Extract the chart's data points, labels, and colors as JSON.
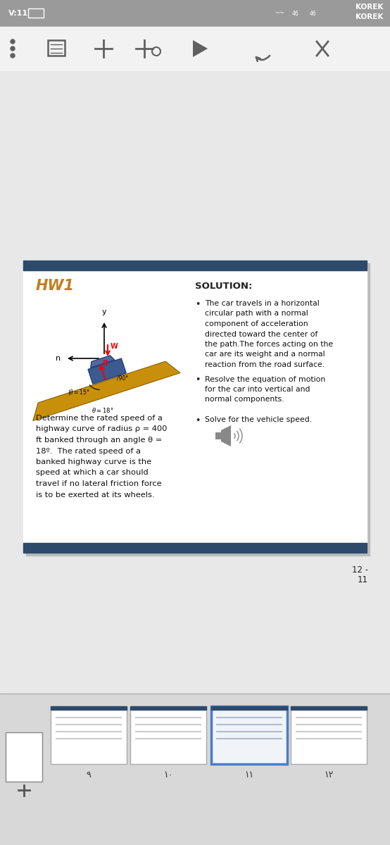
{
  "bg_color": "#e8e8e8",
  "status_bar_color": "#9a9a9a",
  "toolbar_color": "#f2f2f2",
  "slide_border_color": "#2e4a6b",
  "slide_bg": "#ffffff",
  "slide_title": "HW1",
  "slide_title_color": "#c47c20",
  "solution_title": "SOLUTION:",
  "prob_lines": [
    "Determine the rated speed of a",
    "highway curve of radius ρ = 400",
    "ft banked through an angle θ =",
    "18º.  The rated speed of a",
    "banked highway curve is the",
    "speed at which a car should",
    "travel if no lateral friction force",
    "is to be exerted at its wheels."
  ],
  "bullet1_lines": [
    "The car travels in a horizontal",
    "circular path with a normal",
    "component of acceleration",
    "directed toward the center of",
    "the path.The forces acting on the",
    "car are its weight and a normal",
    "reaction from the road surface."
  ],
  "bullet2_lines": [
    "Resolve the equation of motion",
    "for the car into vertical and",
    "normal components."
  ],
  "bullet3": "Solve for the vehicle speed.",
  "page_num1": "12 -",
  "page_num2": "11",
  "thumb_labels": [
    "۹",
    "۱۰",
    "۱۱",
    "۱۲"
  ]
}
